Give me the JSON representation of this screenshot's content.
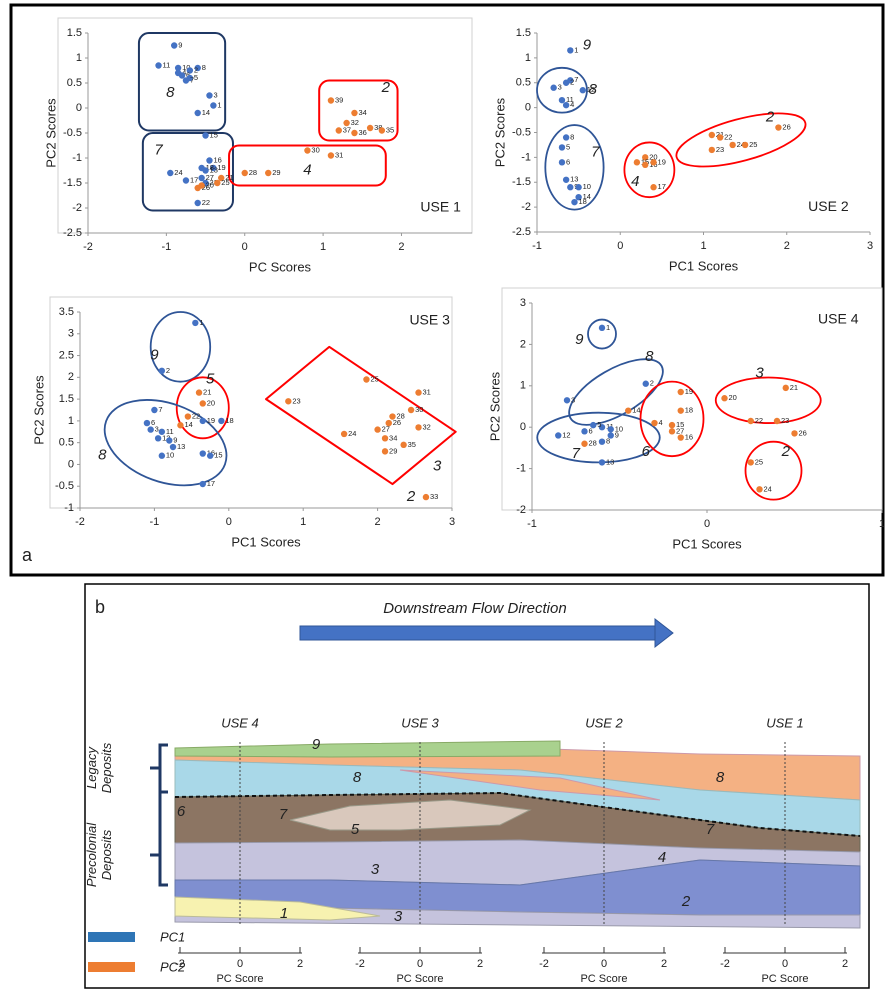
{
  "panel_a_label": "a",
  "chart_data": [
    {
      "type": "scatter",
      "label": "USE 1",
      "xlabel": "PC Scores",
      "ylabel": "PC2 Scores",
      "xlim": [
        -2,
        2.9
      ],
      "xticks": [
        -2,
        -1,
        0,
        1,
        2
      ],
      "ylim": [
        -2.5,
        1.5
      ],
      "yticks": [
        -2.5,
        -2,
        -1.5,
        -1,
        -0.5,
        0,
        0.5,
        1,
        1.5
      ],
      "frame": true,
      "series": [
        {
          "color": "#4472c4",
          "point_labels": [
            "9",
            "11",
            "10",
            "8",
            "2",
            "4",
            "6",
            "5",
            "7",
            "3",
            "1",
            "14",
            "15",
            "16",
            "19",
            "18",
            "13",
            "24",
            "17",
            "27",
            "23",
            "22"
          ],
          "x": [
            -0.9,
            -1.1,
            -0.85,
            -0.6,
            -0.7,
            -0.85,
            -0.8,
            -0.7,
            -0.75,
            -0.45,
            -0.4,
            -0.6,
            -0.5,
            -0.45,
            -0.4,
            -0.55,
            -0.5,
            -0.95,
            -0.75,
            -0.55,
            -0.5,
            -0.6
          ],
          "values": [
            1.25,
            0.85,
            0.8,
            0.8,
            0.75,
            0.7,
            0.65,
            0.6,
            0.55,
            0.25,
            0.05,
            -0.1,
            -0.55,
            -1.05,
            -1.2,
            -1.2,
            -1.25,
            -1.3,
            -1.45,
            -1.4,
            -1.5,
            -1.9
          ]
        },
        {
          "color": "#ed7d31",
          "point_labels": [
            "26",
            "20",
            "21",
            "25",
            "28",
            "29",
            "30",
            "31",
            "39",
            "34",
            "32",
            "37",
            "36",
            "38",
            "35"
          ],
          "x": [
            -0.6,
            -0.55,
            -0.3,
            -0.35,
            0,
            0.3,
            0.8,
            1.1,
            1.1,
            1.4,
            1.3,
            1.2,
            1.4,
            1.6,
            1.75
          ],
          "values": [
            -1.6,
            -1.55,
            -1.4,
            -1.5,
            -1.3,
            -1.3,
            -0.85,
            -0.95,
            0.15,
            -0.1,
            -0.3,
            -0.45,
            -0.5,
            -0.4,
            -0.45
          ]
        }
      ],
      "group_labels": [
        "8",
        "7",
        "4",
        "2"
      ]
    },
    {
      "type": "scatter",
      "label": "USE 2",
      "xlabel": "PC1 Scores",
      "ylabel": "PC2 Scores",
      "xlim": [
        -1,
        3
      ],
      "xticks": [
        -1,
        0,
        1,
        2,
        3
      ],
      "ylim": [
        -2.5,
        1.5
      ],
      "yticks": [
        -2.5,
        -2,
        -1.5,
        -1,
        -0.5,
        0,
        0.5,
        1,
        1.5
      ],
      "frame": false,
      "series": [
        {
          "color": "#4472c4",
          "point_labels": [
            "1",
            "7",
            "2",
            "3",
            "12",
            "11",
            "4",
            "8",
            "5",
            "6",
            "13",
            "9",
            "10",
            "14",
            "18"
          ],
          "x": [
            -0.6,
            -0.6,
            -0.65,
            -0.8,
            -0.45,
            -0.7,
            -0.65,
            -0.65,
            -0.7,
            -0.7,
            -0.65,
            -0.6,
            -0.5,
            -0.5,
            -0.55
          ],
          "values": [
            1.15,
            0.55,
            0.5,
            0.4,
            0.35,
            0.15,
            0.05,
            -0.6,
            -0.8,
            -1.1,
            -1.45,
            -1.6,
            -1.6,
            -1.8,
            -1.9
          ]
        },
        {
          "color": "#ed7d31",
          "point_labels": [
            "20",
            "15",
            "16",
            "19",
            "17",
            "21",
            "22",
            "24",
            "23",
            "25",
            "26"
          ],
          "x": [
            0.3,
            0.2,
            0.3,
            0.4,
            0.4,
            1.1,
            1.2,
            1.35,
            1.1,
            1.5,
            1.9
          ],
          "values": [
            -1.0,
            -1.1,
            -1.15,
            -1.1,
            -1.6,
            -0.55,
            -0.6,
            -0.75,
            -0.85,
            -0.75,
            -0.4
          ]
        }
      ],
      "group_labels": [
        "9",
        "8",
        "7",
        "4",
        "2"
      ]
    },
    {
      "type": "scatter",
      "label": "USE 3",
      "xlabel": "PC1 Scores",
      "ylabel": "PC2 Scores",
      "xlim": [
        -2,
        3
      ],
      "xticks": [
        -2,
        -1,
        0,
        1,
        2,
        3
      ],
      "ylim": [
        -1,
        3.5
      ],
      "yticks": [
        -1,
        -0.5,
        0,
        0.5,
        1,
        1.5,
        2,
        2.5,
        3,
        3.5
      ],
      "frame": true,
      "series": [
        {
          "color": "#4472c4",
          "point_labels": [
            "1",
            "2",
            "7",
            "6",
            "3",
            "11",
            "12",
            "9",
            "13",
            "10",
            "19",
            "18",
            "16",
            "15",
            "17"
          ],
          "x": [
            -0.45,
            -0.9,
            -1.0,
            -1.1,
            -1.05,
            -0.9,
            -0.95,
            -0.8,
            -0.75,
            -0.9,
            -0.35,
            -0.1,
            -0.35,
            -0.25,
            -0.35
          ],
          "values": [
            3.25,
            2.15,
            1.25,
            0.95,
            0.8,
            0.75,
            0.6,
            0.55,
            0.4,
            0.2,
            1.0,
            1.0,
            0.25,
            0.2,
            -0.45
          ]
        },
        {
          "color": "#ed7d31",
          "point_labels": [
            "21",
            "20",
            "22",
            "14",
            "23",
            "25",
            "31",
            "30",
            "28",
            "26",
            "27",
            "24",
            "32",
            "34",
            "35",
            "29",
            "33"
          ],
          "x": [
            -0.4,
            -0.35,
            -0.55,
            -0.65,
            0.8,
            1.85,
            2.55,
            2.45,
            2.2,
            2.15,
            2.0,
            1.55,
            2.55,
            2.1,
            2.35,
            2.1,
            2.65
          ],
          "values": [
            1.65,
            1.4,
            1.1,
            0.9,
            1.45,
            1.95,
            1.65,
            1.25,
            1.1,
            0.95,
            0.8,
            0.7,
            0.85,
            0.6,
            0.45,
            0.3,
            -0.75
          ]
        }
      ],
      "group_labels": [
        "9",
        "5",
        "8",
        "3",
        "2"
      ]
    },
    {
      "type": "scatter",
      "label": "USE 4",
      "xlabel": "PC1 Scores",
      "ylabel": "PC2 Scores",
      "xlim": [
        -1,
        1
      ],
      "xticks": [
        -1,
        0,
        1
      ],
      "ylim": [
        -2,
        3
      ],
      "yticks": [
        -2,
        -1,
        0,
        1,
        2,
        3
      ],
      "frame": true,
      "series": [
        {
          "color": "#4472c4",
          "point_labels": [
            "1",
            "2",
            "3",
            "11",
            "5",
            "10",
            "6",
            "12",
            "9",
            "8",
            "13"
          ],
          "x": [
            -0.6,
            -0.35,
            -0.8,
            -0.6,
            -0.65,
            -0.55,
            -0.7,
            -0.85,
            -0.55,
            -0.6,
            -0.6
          ],
          "values": [
            2.4,
            1.05,
            0.65,
            0.0,
            0.05,
            -0.05,
            -0.1,
            -0.2,
            -0.2,
            -0.35,
            -0.85
          ]
        },
        {
          "color": "#ed7d31",
          "point_labels": [
            "14",
            "28",
            "4",
            "19",
            "18",
            "15",
            "27",
            "16",
            "20",
            "21",
            "22",
            "23",
            "26",
            "25",
            "24"
          ],
          "x": [
            -0.45,
            -0.7,
            -0.3,
            -0.15,
            -0.15,
            -0.2,
            -0.2,
            -0.15,
            0.1,
            0.45,
            0.25,
            0.4,
            0.5,
            0.25,
            0.3
          ],
          "values": [
            0.4,
            -0.4,
            0.1,
            0.85,
            0.4,
            0.05,
            -0.1,
            -0.25,
            0.7,
            0.95,
            0.15,
            0.15,
            -0.15,
            -0.85,
            -1.5
          ]
        }
      ],
      "group_labels": [
        "9",
        "8",
        "7",
        "6",
        "3",
        "2"
      ]
    }
  ],
  "diagram": {
    "panel_label": "b",
    "flow_title": "Downstream Flow Direction",
    "columns": [
      "USE 4",
      "USE 3",
      "USE 2",
      "USE 1"
    ],
    "group_labels": [
      [
        "Legacy",
        "Deposits"
      ],
      [
        "Precolonial",
        "Deposits"
      ]
    ],
    "units": [
      "9",
      "8",
      "8",
      "7",
      "7",
      "6",
      "5",
      "4",
      "3",
      "3",
      "2",
      "1"
    ],
    "axis_ticks": [
      -2,
      0,
      2
    ],
    "axis_label": "PC Score",
    "legend": [
      "PC1",
      "PC2"
    ]
  }
}
